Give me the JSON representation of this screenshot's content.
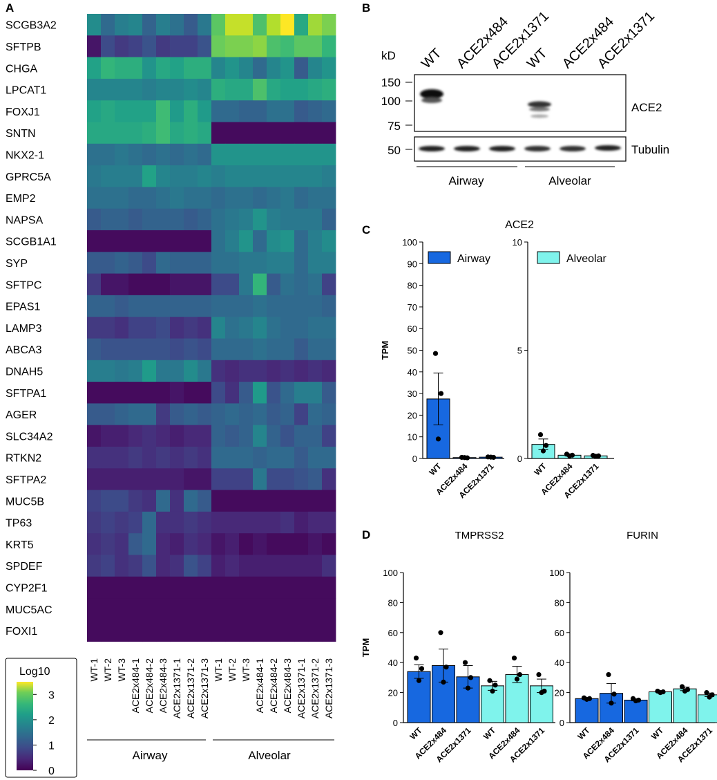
{
  "panels": {
    "a": {
      "label": "A",
      "genes": [
        "SCGB3A2",
        "SFTPB",
        "CHGA",
        "LPCAT1",
        "FOXJ1",
        "SNTN",
        "NKX2-1",
        "GPRC5A",
        "EMP2",
        "NAPSA",
        "SCGB1A1",
        "SYP",
        "SFTPC",
        "EPAS1",
        "LAMP3",
        "ABCA3",
        "DNAH5",
        "SFTPA1",
        "AGER",
        "SLC34A2",
        "RTKN2",
        "SFTPA2",
        "MUC5B",
        "TP63",
        "KRT5",
        "SPDEF",
        "CYP2F1",
        "MUC5AC",
        "FOXI1"
      ],
      "samples": [
        "WT-1",
        "WT-2",
        "WT-3",
        "ACE2x484-1",
        "ACE2x484-2",
        "ACE2x484-3",
        "ACE2x1371-1",
        "ACE2x1371-2",
        "ACE2x1371-3",
        "WT-1",
        "WT-2",
        "WT-3",
        "ACE2x484-1",
        "ACE2x484-2",
        "ACE2x484-3",
        "ACE2x1371-1",
        "ACE2x1371-2",
        "ACE2x1371-3"
      ],
      "groups": [
        "Airway",
        "Alveolar"
      ],
      "legend_title": "Log10",
      "legend_ticks": [
        "0",
        "1",
        "2",
        "3"
      ]
    },
    "b": {
      "label": "B",
      "kd_label": "kD",
      "lanes": [
        "WT",
        "ACE2x484",
        "ACE2x1371",
        "WT",
        "ACE2x484",
        "ACE2x1371"
      ],
      "markers_top": [
        "150",
        "100",
        "75"
      ],
      "marker_bottom": "50",
      "band_top": "ACE2",
      "band_bottom": "Tubulin",
      "groups": [
        "Airway",
        "Alveolar"
      ]
    },
    "c": {
      "label": "C",
      "title": "ACE2"
    },
    "d": {
      "label": "D"
    }
  },
  "chart_data": [
    {
      "type": "heatmap",
      "panel": "A",
      "colorbar": {
        "title": "Log10",
        "range": [
          0,
          3.5
        ],
        "colormap": "viridis"
      },
      "rows": [
        "SCGB3A2",
        "SFTPB",
        "CHGA",
        "LPCAT1",
        "FOXJ1",
        "SNTN",
        "NKX2-1",
        "GPRC5A",
        "EMP2",
        "NAPSA",
        "SCGB1A1",
        "SYP",
        "SFTPC",
        "EPAS1",
        "LAMP3",
        "ABCA3",
        "DNAH5",
        "SFTPA1",
        "AGER",
        "SLC34A2",
        "RTKN2",
        "SFTPA2",
        "MUC5B",
        "TP63",
        "KRT5",
        "SPDEF",
        "CYP2F1",
        "MUC5AC",
        "FOXI1"
      ],
      "columns": [
        "WT-1",
        "WT-2",
        "WT-3",
        "ACE2x484-1",
        "ACE2x484-2",
        "ACE2x484-3",
        "ACE2x1371-1",
        "ACE2x1371-2",
        "ACE2x1371-3",
        "WT-1",
        "WT-2",
        "WT-3",
        "ACE2x484-1",
        "ACE2x484-2",
        "ACE2x484-3",
        "ACE2x1371-1",
        "ACE2x1371-2",
        "ACE2x1371-3"
      ],
      "values": [
        [
          1.7,
          1.2,
          1.5,
          1.6,
          1.1,
          1.5,
          1.3,
          1.0,
          1.4,
          2.6,
          3.2,
          3.2,
          2.5,
          3.1,
          3.5,
          2.1,
          3.0,
          2.8
        ],
        [
          0.2,
          0.8,
          0.6,
          0.7,
          0.9,
          0.6,
          0.7,
          0.7,
          0.9,
          2.7,
          2.8,
          2.8,
          2.9,
          2.5,
          2.4,
          2.6,
          2.6,
          2.3
        ],
        [
          2.0,
          2.3,
          2.2,
          2.2,
          1.8,
          2.1,
          2.0,
          2.2,
          2.2,
          1.6,
          1.8,
          1.6,
          1.2,
          1.6,
          1.8,
          1.0,
          1.6,
          1.8
        ],
        [
          1.6,
          1.6,
          1.6,
          1.6,
          1.5,
          1.6,
          1.6,
          1.7,
          1.6,
          2.2,
          2.1,
          2.1,
          2.5,
          2.1,
          2.0,
          2.0,
          2.1,
          2.2
        ],
        [
          2.0,
          2.1,
          2.0,
          2.0,
          2.0,
          2.4,
          1.9,
          2.2,
          1.9,
          1.2,
          1.2,
          1.1,
          1.1,
          1.3,
          1.3,
          1.0,
          1.1,
          1.2
        ],
        [
          2.1,
          2.1,
          2.1,
          2.1,
          2.2,
          2.4,
          2.1,
          2.2,
          2.1,
          0.1,
          0.1,
          0.1,
          0.1,
          0.1,
          0.1,
          0.1,
          0.1,
          0.1
        ],
        [
          1.3,
          1.3,
          1.4,
          1.3,
          1.2,
          1.3,
          1.2,
          1.3,
          1.2,
          1.8,
          1.8,
          1.8,
          1.8,
          1.8,
          1.8,
          1.8,
          1.8,
          1.8
        ],
        [
          1.4,
          1.5,
          1.5,
          1.5,
          2.0,
          1.6,
          1.5,
          1.5,
          1.6,
          1.5,
          1.6,
          1.6,
          1.6,
          1.6,
          1.6,
          1.6,
          1.6,
          1.5
        ],
        [
          1.3,
          1.3,
          1.3,
          1.2,
          1.2,
          1.3,
          1.4,
          1.3,
          1.3,
          1.2,
          1.3,
          1.3,
          1.2,
          1.3,
          1.4,
          1.2,
          1.3,
          1.3
        ],
        [
          1.0,
          1.1,
          1.1,
          1.0,
          1.1,
          1.1,
          1.1,
          1.0,
          1.1,
          1.3,
          1.4,
          1.5,
          1.8,
          1.5,
          1.4,
          1.4,
          1.4,
          1.1
        ],
        [
          0.1,
          0.1,
          0.1,
          0.1,
          0.1,
          0.1,
          0.1,
          0.1,
          0.1,
          1.3,
          1.5,
          1.8,
          1.2,
          1.7,
          1.8,
          1.2,
          1.5,
          1.7
        ],
        [
          1.0,
          1.0,
          1.1,
          1.0,
          0.8,
          1.2,
          1.1,
          1.1,
          1.1,
          1.3,
          1.3,
          1.4,
          1.4,
          1.5,
          1.5,
          1.2,
          1.5,
          1.5
        ],
        [
          0.6,
          0.2,
          0.2,
          0.1,
          0.1,
          0.1,
          0.2,
          0.2,
          0.2,
          0.8,
          0.8,
          1.4,
          2.3,
          1.0,
          1.3,
          1.2,
          1.3,
          0.7
        ],
        [
          1.1,
          1.1,
          1.0,
          1.1,
          1.1,
          1.1,
          1.1,
          1.1,
          1.1,
          1.2,
          1.2,
          1.2,
          1.3,
          1.2,
          1.2,
          1.2,
          1.2,
          1.1
        ],
        [
          0.6,
          0.6,
          0.5,
          0.7,
          0.7,
          0.8,
          0.5,
          0.6,
          0.5,
          1.6,
          1.3,
          1.4,
          1.6,
          1.3,
          1.2,
          1.2,
          1.3,
          1.3
        ],
        [
          1.0,
          0.9,
          0.9,
          0.9,
          0.9,
          0.9,
          0.8,
          0.9,
          0.8,
          1.2,
          1.2,
          1.2,
          1.3,
          1.2,
          1.2,
          1.0,
          1.2,
          1.2
        ],
        [
          1.5,
          1.5,
          1.4,
          1.5,
          1.9,
          1.4,
          1.4,
          1.7,
          1.4,
          0.5,
          0.4,
          0.5,
          0.5,
          0.4,
          0.5,
          0.4,
          0.5,
          0.4
        ],
        [
          0.1,
          0.1,
          0.1,
          0.1,
          0.1,
          0.1,
          0.2,
          0.1,
          0.1,
          0.8,
          0.5,
          1.0,
          1.9,
          0.9,
          1.2,
          1.5,
          1.5,
          1.0
        ],
        [
          1.0,
          1.0,
          1.1,
          1.2,
          1.2,
          0.6,
          1.0,
          1.1,
          1.0,
          1.1,
          1.2,
          1.1,
          1.2,
          1.0,
          1.1,
          0.7,
          1.2,
          1.1
        ],
        [
          0.2,
          0.3,
          0.3,
          0.4,
          0.5,
          0.4,
          0.3,
          0.4,
          0.4,
          1.1,
          1.0,
          1.1,
          1.6,
          1.1,
          0.9,
          1.1,
          1.1,
          0.7
        ],
        [
          0.5,
          0.5,
          0.5,
          0.6,
          0.5,
          0.6,
          0.5,
          0.6,
          0.5,
          1.2,
          1.2,
          1.2,
          1.1,
          1.2,
          1.2,
          1.0,
          1.2,
          1.2
        ],
        [
          0.3,
          0.3,
          0.3,
          0.3,
          0.3,
          0.3,
          0.3,
          0.2,
          0.2,
          0.7,
          0.7,
          0.7,
          1.4,
          0.8,
          0.8,
          0.9,
          1.0,
          0.5
        ],
        [
          0.7,
          0.8,
          0.8,
          0.6,
          0.5,
          1.2,
          0.5,
          1.2,
          1.0,
          0.1,
          0.1,
          0.1,
          0.1,
          0.1,
          0.1,
          0.1,
          0.1,
          0.1
        ],
        [
          0.6,
          0.7,
          0.6,
          0.7,
          1.2,
          0.5,
          0.5,
          0.6,
          0.5,
          0.4,
          0.4,
          0.4,
          0.4,
          0.4,
          0.5,
          0.3,
          0.4,
          0.4
        ],
        [
          0.5,
          0.6,
          0.5,
          1.0,
          1.2,
          0.4,
          0.3,
          0.5,
          0.4,
          0.2,
          0.3,
          0.1,
          0.2,
          0.1,
          0.1,
          0.1,
          0.2,
          0.1
        ],
        [
          0.6,
          0.7,
          0.5,
          0.6,
          0.9,
          0.4,
          0.5,
          0.9,
          0.7,
          0.3,
          0.4,
          0.3,
          0.3,
          0.3,
          0.3,
          0.3,
          0.3,
          0.5
        ],
        [
          0.1,
          0.1,
          0.1,
          0.1,
          0.1,
          0.1,
          0.1,
          0.1,
          0.1,
          0.1,
          0.1,
          0.1,
          0.1,
          0.1,
          0.1,
          0.1,
          0.1,
          0.1
        ],
        [
          0.1,
          0.1,
          0.1,
          0.1,
          0.1,
          0.1,
          0.1,
          0.1,
          0.1,
          0.1,
          0.1,
          0.1,
          0.1,
          0.1,
          0.1,
          0.1,
          0.1,
          0.1
        ],
        [
          0.1,
          0.1,
          0.1,
          0.1,
          0.1,
          0.1,
          0.1,
          0.1,
          0.1,
          0.1,
          0.1,
          0.1,
          0.1,
          0.1,
          0.1,
          0.1,
          0.1,
          0.1
        ]
      ]
    },
    {
      "type": "bar",
      "panel": "C-Airway",
      "title": "ACE2",
      "ylabel": "TPM",
      "ylim": [
        0,
        100
      ],
      "yticks": [
        0,
        10,
        20,
        30,
        40,
        50,
        60,
        70,
        80,
        90,
        100
      ],
      "categories": [
        "WT",
        "ACE2x484",
        "ACE2x1371"
      ],
      "values": [
        27.5,
        0.4,
        0.6
      ],
      "errors": [
        12,
        0.2,
        0.2
      ],
      "points": [
        [
          48.5,
          30,
          9
        ],
        [
          0.5,
          0.3,
          0.4
        ],
        [
          0.7,
          0.5,
          0.6
        ]
      ],
      "legend": "Airway",
      "color": "#1768e0"
    },
    {
      "type": "bar",
      "panel": "C-Alveolar",
      "ylabel": "",
      "ylim": [
        0,
        10
      ],
      "yticks": [
        0,
        5,
        10
      ],
      "categories": [
        "WT",
        "ACE2x484",
        "ACE2x1371"
      ],
      "values": [
        0.65,
        0.15,
        0.12
      ],
      "errors": [
        0.25,
        0.03,
        0.03
      ],
      "points": [
        [
          1.1,
          0.6,
          0.35
        ],
        [
          0.2,
          0.15,
          0.12
        ],
        [
          0.14,
          0.12,
          0.1
        ]
      ],
      "legend": "Alveolar",
      "color": "#7ff3ec"
    },
    {
      "type": "bar",
      "panel": "D",
      "title": "TMPRSS2",
      "ylabel": "TPM",
      "ylim": [
        0,
        100
      ],
      "yticks": [
        0,
        20,
        40,
        60,
        80,
        100
      ],
      "categories": [
        "WT",
        "ACE2x484",
        "ACE2x1371",
        "WT",
        "ACE2x484",
        "ACE2x1371"
      ],
      "groups": [
        "Airway",
        "Airway",
        "Airway",
        "Alveolar",
        "Alveolar",
        "Alveolar"
      ],
      "values": [
        34,
        38,
        30.5,
        24.5,
        32,
        24.5
      ],
      "errors": [
        4.5,
        11,
        7.5,
        3,
        5.5,
        4.5
      ],
      "points": [
        [
          43,
          36,
          28
        ],
        [
          60,
          37,
          27
        ],
        [
          40,
          30,
          23
        ],
        [
          28,
          25,
          21
        ],
        [
          43,
          32,
          29
        ],
        [
          32,
          21,
          20
        ]
      ]
    },
    {
      "type": "bar",
      "panel": "D",
      "title": "FURIN",
      "ylabel": "",
      "ylim": [
        0,
        100
      ],
      "yticks": [
        0,
        20,
        40,
        60,
        80,
        100
      ],
      "categories": [
        "WT",
        "ACE2x484",
        "ACE2x1371",
        "WT",
        "ACE2x484",
        "ACE2x1371"
      ],
      "groups": [
        "Airway",
        "Airway",
        "Airway",
        "Alveolar",
        "Alveolar",
        "Alveolar"
      ],
      "values": [
        16,
        19.5,
        15,
        20.5,
        22.5,
        18.5
      ],
      "errors": [
        0.5,
        6.5,
        0.5,
        0.5,
        1.2,
        1.2
      ],
      "points": [
        [
          16.5,
          16,
          15.5
        ],
        [
          32,
          19,
          13
        ],
        [
          16,
          15,
          14.5
        ],
        [
          21,
          20.5,
          20
        ],
        [
          24,
          22,
          21
        ],
        [
          20,
          18.5,
          17
        ]
      ]
    }
  ]
}
